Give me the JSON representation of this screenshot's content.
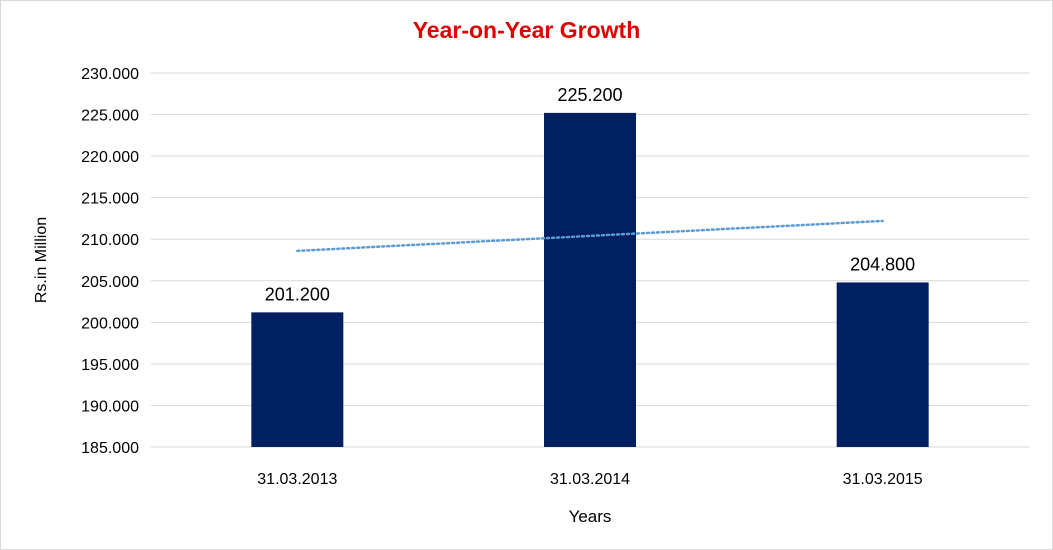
{
  "chart_data": {
    "type": "bar",
    "title": "Year-on-Year Growth",
    "xlabel": "Years",
    "ylabel": "Rs.in Million",
    "categories": [
      "31.03.2013",
      "31.03.2014",
      "31.03.2015"
    ],
    "values": [
      201.2,
      225.2,
      204.8
    ],
    "data_labels": [
      "201.200",
      "225.200",
      "204.800"
    ],
    "ylim": [
      185,
      230
    ],
    "y_ticks": [
      185,
      190,
      195,
      200,
      205,
      210,
      215,
      220,
      225,
      230
    ],
    "y_tick_labels": [
      "185.000",
      "190.000",
      "195.000",
      "200.000",
      "205.000",
      "210.000",
      "215.000",
      "220.000",
      "225.000",
      "230.000"
    ],
    "trendline": {
      "type": "linear",
      "style": "dotted",
      "color": "#5b9bd5"
    },
    "grid": true,
    "legend": "none",
    "colors": {
      "bar": "#002060",
      "title": "#e00000",
      "gridline": "#d9d9d9",
      "trendline": "#5b9bd5"
    }
  }
}
